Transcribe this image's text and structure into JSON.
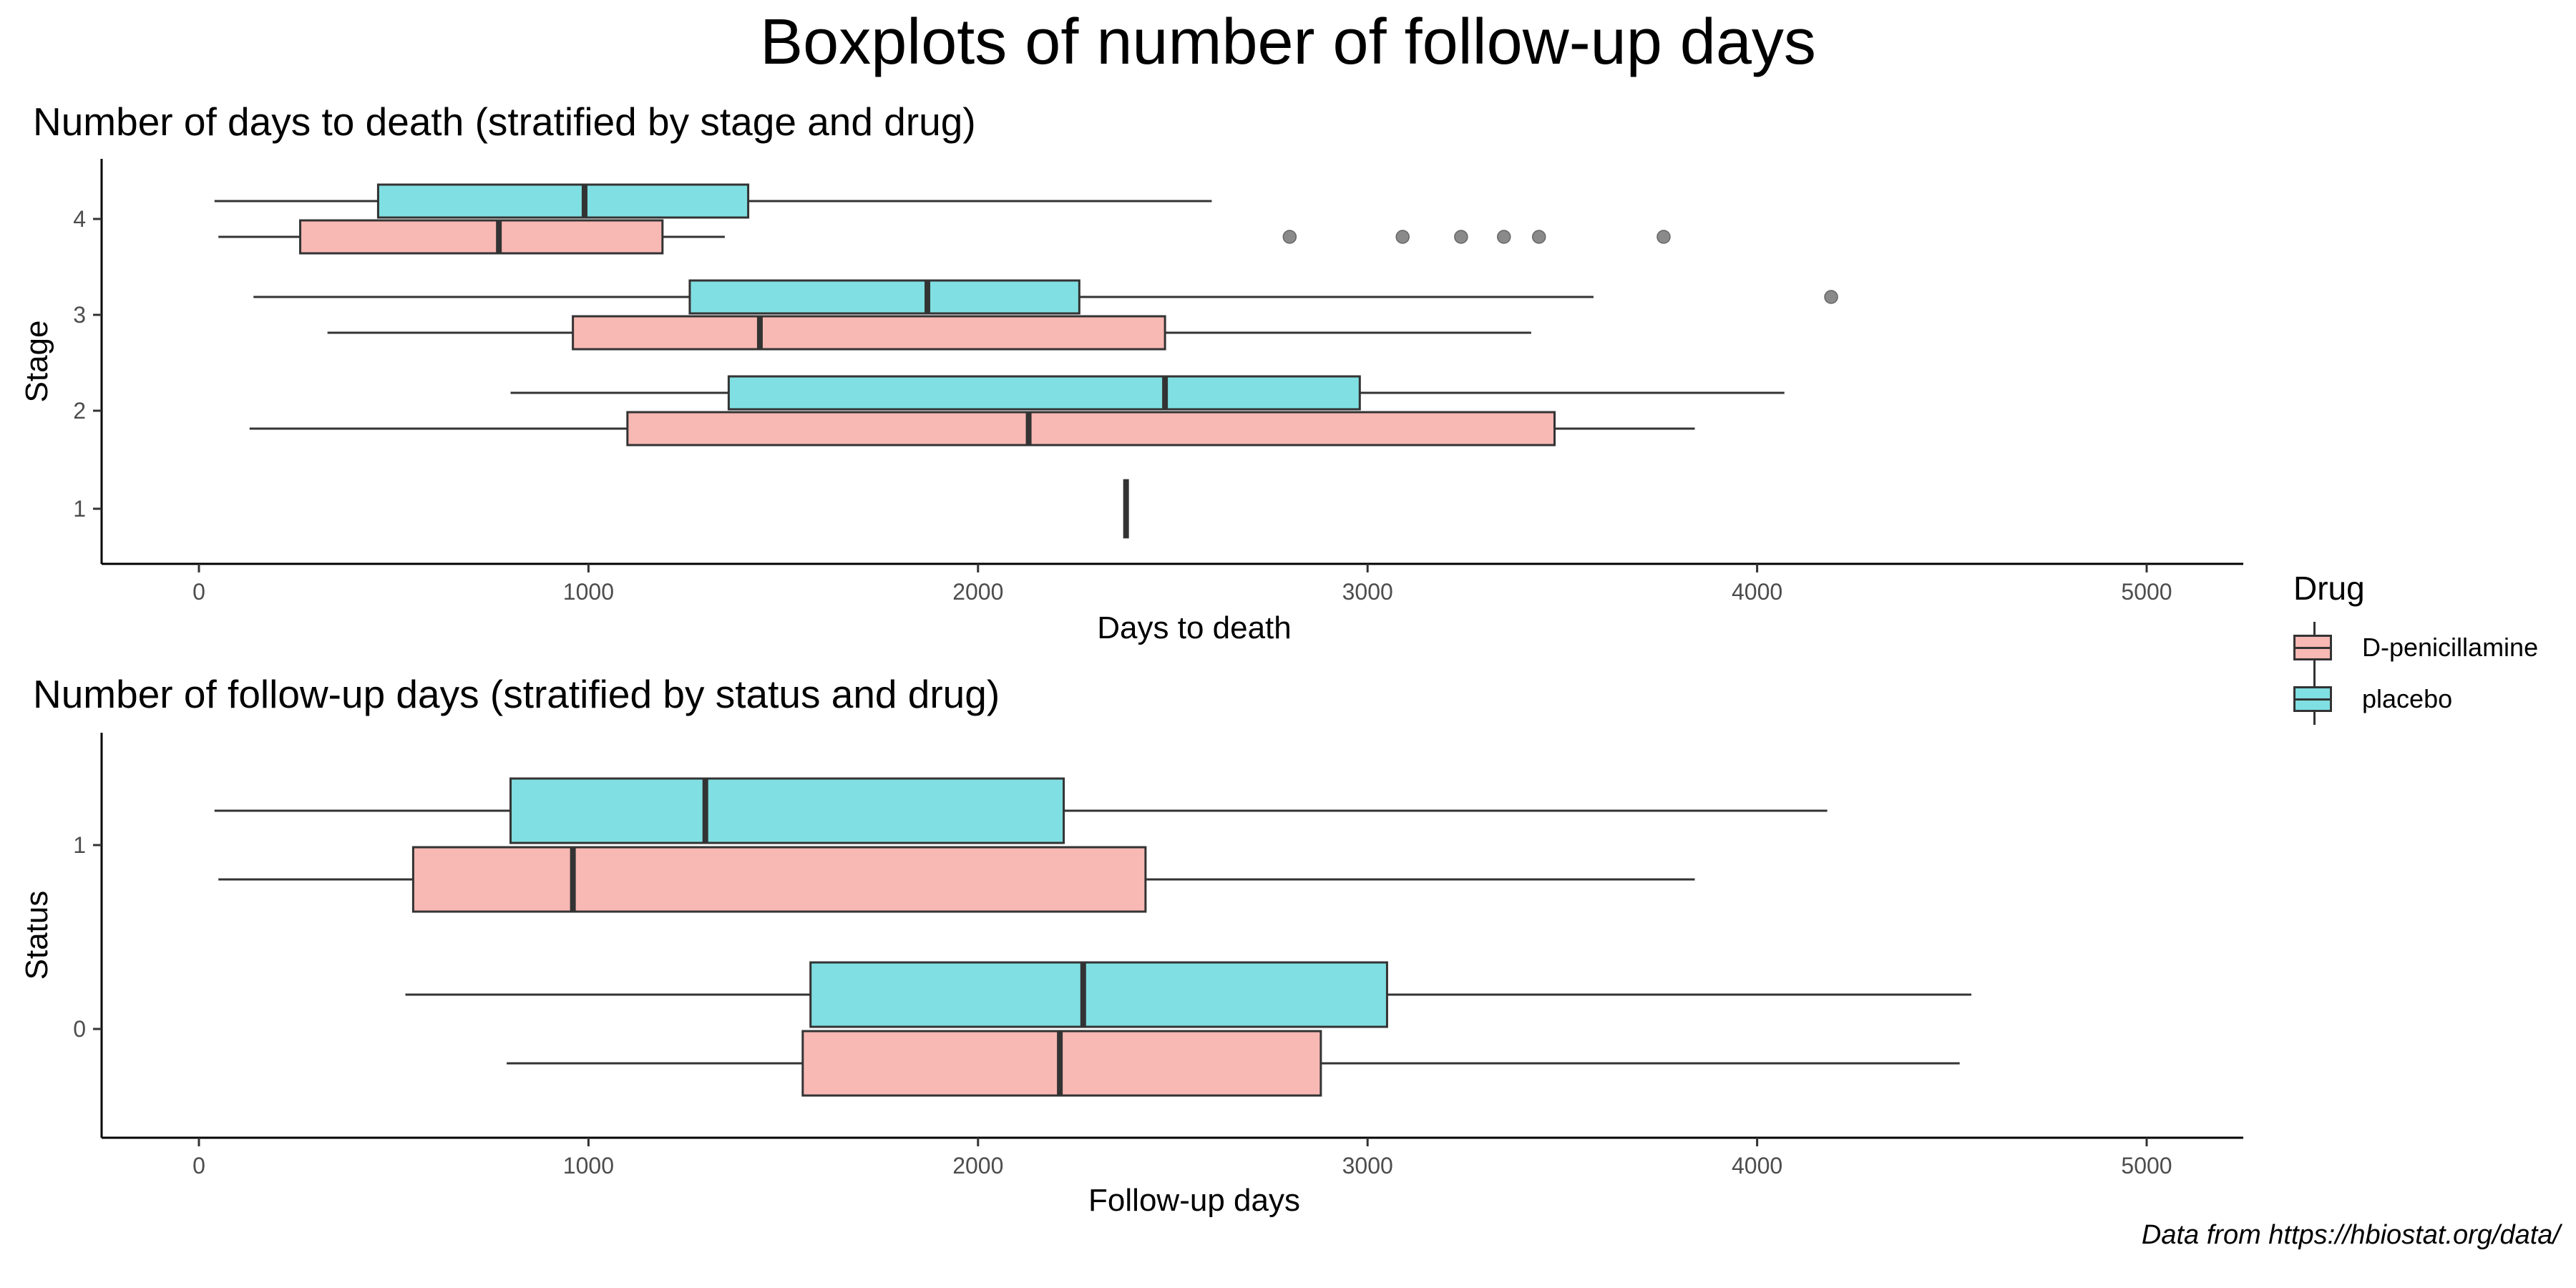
{
  "title": "Boxplots of number of follow-up days",
  "caption": "Data from https://hbiostat.org/data/",
  "legend": {
    "title": "Drug",
    "items": [
      {
        "label": "D-penicillamine",
        "color": "#F8B8B4"
      },
      {
        "label": "placebo",
        "color": "#80DFE2"
      }
    ]
  },
  "chart_data": [
    {
      "type": "boxplot",
      "orientation": "horizontal",
      "title": "Number of days to death (stratified by stage and drug)",
      "xlabel": "Days to death",
      "ylabel": "Stage",
      "xlim": [
        0,
        5000
      ],
      "xticks": [
        0,
        1000,
        2000,
        3000,
        4000,
        5000
      ],
      "categories": [
        "1",
        "2",
        "3",
        "4"
      ],
      "series": [
        {
          "name": "D-penicillamine",
          "color": "#F8B8B4",
          "boxes": [
            {
              "category": "2",
              "whisker_low": 130,
              "q1": 1100,
              "median": 2130,
              "q3": 3480,
              "whisker_high": 3840,
              "outliers": []
            },
            {
              "category": "3",
              "whisker_low": 330,
              "q1": 960,
              "median": 1440,
              "q3": 2480,
              "whisker_high": 3420,
              "outliers": []
            },
            {
              "category": "4",
              "whisker_low": 50,
              "q1": 260,
              "median": 770,
              "q3": 1190,
              "whisker_high": 1350,
              "outliers": [
                2800,
                3090,
                3240,
                3350,
                3440,
                3760
              ]
            }
          ]
        },
        {
          "name": "placebo",
          "color": "#80DFE2",
          "boxes": [
            {
              "category": "1",
              "whisker_low": 2380,
              "q1": 2380,
              "median": 2380,
              "q3": 2380,
              "whisker_high": 2380,
              "outliers": []
            },
            {
              "category": "2",
              "whisker_low": 800,
              "q1": 1360,
              "median": 2480,
              "q3": 2980,
              "whisker_high": 4070,
              "outliers": []
            },
            {
              "category": "3",
              "whisker_low": 140,
              "q1": 1260,
              "median": 1870,
              "q3": 2260,
              "whisker_high": 3580,
              "outliers": [
                4190
              ]
            },
            {
              "category": "4",
              "whisker_low": 40,
              "q1": 460,
              "median": 990,
              "q3": 1410,
              "whisker_high": 2600,
              "outliers": []
            }
          ]
        }
      ]
    },
    {
      "type": "boxplot",
      "orientation": "horizontal",
      "title": "Number of follow-up days (stratified by status and drug)",
      "xlabel": "Follow-up days",
      "ylabel": "Status",
      "xlim": [
        0,
        5000
      ],
      "xticks": [
        0,
        1000,
        2000,
        3000,
        4000,
        5000
      ],
      "categories": [
        "0",
        "1"
      ],
      "series": [
        {
          "name": "D-penicillamine",
          "color": "#F8B8B4",
          "boxes": [
            {
              "category": "0",
              "whisker_low": 790,
              "q1": 1550,
              "median": 2210,
              "q3": 2880,
              "whisker_high": 4520,
              "outliers": []
            },
            {
              "category": "1",
              "whisker_low": 50,
              "q1": 550,
              "median": 960,
              "q3": 2430,
              "whisker_high": 3840,
              "outliers": []
            }
          ]
        },
        {
          "name": "placebo",
          "color": "#80DFE2",
          "boxes": [
            {
              "category": "0",
              "whisker_low": 530,
              "q1": 1570,
              "median": 2270,
              "q3": 3050,
              "whisker_high": 4550,
              "outliers": []
            },
            {
              "category": "1",
              "whisker_low": 40,
              "q1": 800,
              "median": 1300,
              "q3": 2220,
              "whisker_high": 4180,
              "outliers": []
            }
          ]
        }
      ]
    }
  ]
}
